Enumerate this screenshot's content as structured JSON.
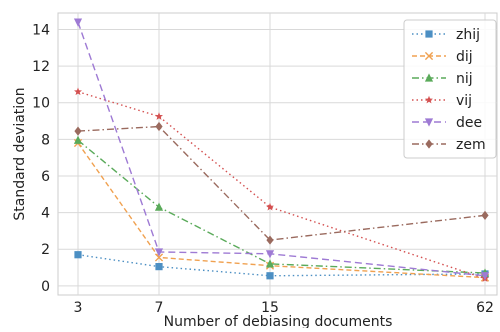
{
  "chart_data": {
    "type": "line",
    "title": "",
    "xlabel": "Number of debiasing documents",
    "ylabel": "Standard deviation",
    "x": [
      3,
      7,
      15,
      62
    ],
    "x_tick_labels": [
      "3",
      "7",
      "15",
      "62"
    ],
    "ylim": [
      0,
      15
    ],
    "y_ticks": [
      0,
      2,
      4,
      6,
      8,
      10,
      12,
      14
    ],
    "y_tick_labels": [
      "0",
      "2",
      "4",
      "6",
      "8",
      "10",
      "12",
      "14"
    ],
    "grid": true,
    "legend_position": "top-right",
    "series": [
      {
        "name": "zhij",
        "values": [
          1.7,
          1.05,
          0.55,
          0.65
        ],
        "color": "#4c8fc3",
        "dash": "dotted",
        "marker": "square"
      },
      {
        "name": "dij",
        "values": [
          7.8,
          1.55,
          1.1,
          0.45
        ],
        "color": "#f0a150",
        "dash": "dashed",
        "marker": "x"
      },
      {
        "name": "nij",
        "values": [
          7.95,
          4.3,
          1.2,
          0.7
        ],
        "color": "#5aaa5a",
        "dash": "dashdot",
        "marker": "triangle-up"
      },
      {
        "name": "vij",
        "values": [
          10.6,
          9.25,
          4.3,
          0.4
        ],
        "color": "#d45050",
        "dash": "dotted",
        "marker": "star"
      },
      {
        "name": "dee",
        "values": [
          14.4,
          1.85,
          1.75,
          0.55
        ],
        "color": "#9e7ad4",
        "dash": "dashed-long",
        "marker": "triangle-down"
      },
      {
        "name": "zem",
        "values": [
          8.45,
          8.7,
          2.5,
          3.85
        ],
        "color": "#9a6a5e",
        "dash": "dashdot",
        "marker": "diamond"
      }
    ]
  }
}
